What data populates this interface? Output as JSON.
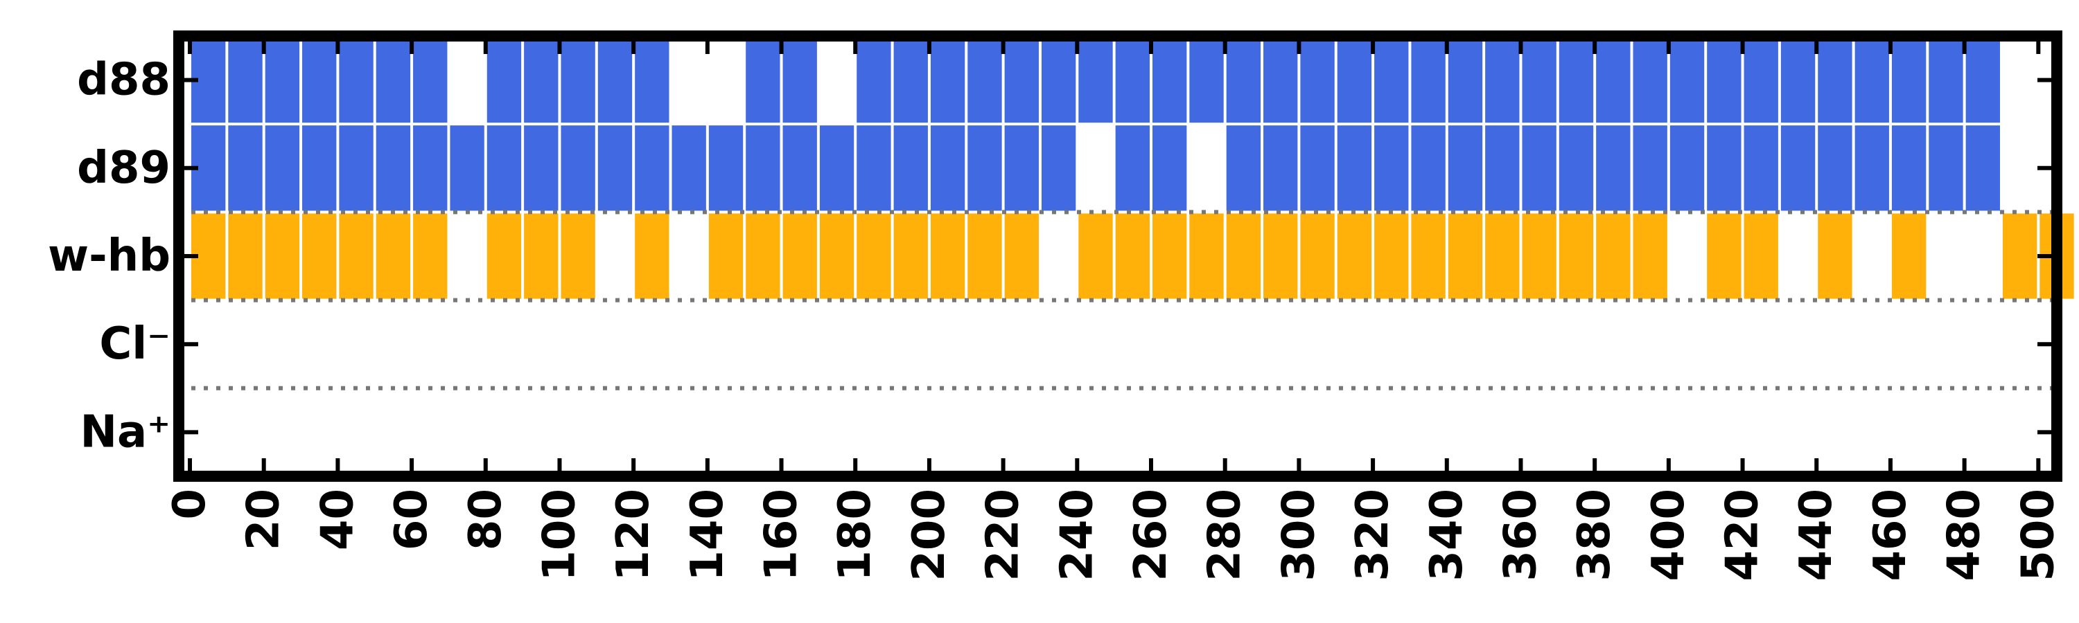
{
  "chart_data": {
    "type": "heatmap",
    "title": "",
    "xlabel": "",
    "ylabel": "",
    "xlim": [
      -3,
      505
    ],
    "x_ticks": [
      0,
      20,
      40,
      60,
      80,
      100,
      120,
      140,
      160,
      180,
      200,
      220,
      240,
      260,
      280,
      300,
      320,
      340,
      360,
      380,
      400,
      420,
      440,
      460,
      480,
      500
    ],
    "x_tick_labels": [
      "0",
      "20",
      "40",
      "60",
      "80",
      "100",
      "120",
      "140",
      "160",
      "180",
      "200",
      "220",
      "240",
      "260",
      "280",
      "300",
      "320",
      "340",
      "360",
      "380",
      "400",
      "420",
      "440",
      "460",
      "480",
      "500"
    ],
    "bin_width": 10,
    "rows": [
      {
        "label": "d88",
        "color": "#4169E1",
        "present_bins": [
          0,
          10,
          20,
          30,
          40,
          50,
          60,
          80,
          90,
          100,
          110,
          120,
          150,
          160,
          180,
          190,
          200,
          210,
          220,
          230,
          240,
          250,
          260,
          270,
          280,
          290,
          300,
          310,
          320,
          330,
          340,
          350,
          360,
          370,
          380,
          390,
          400,
          410,
          420,
          430,
          440,
          450,
          460,
          470,
          480
        ]
      },
      {
        "label": "d89",
        "color": "#4169E1",
        "present_bins": [
          0,
          10,
          20,
          30,
          40,
          50,
          60,
          70,
          80,
          90,
          100,
          110,
          120,
          130,
          140,
          150,
          160,
          170,
          180,
          190,
          200,
          210,
          220,
          230,
          250,
          260,
          280,
          290,
          300,
          310,
          320,
          330,
          340,
          350,
          360,
          370,
          380,
          390,
          400,
          410,
          420,
          430,
          440,
          450,
          460,
          470,
          480
        ]
      },
      {
        "label": "w-hb",
        "color": "#FFB10A",
        "present_bins": [
          0,
          10,
          20,
          30,
          40,
          50,
          60,
          80,
          90,
          100,
          120,
          140,
          150,
          160,
          170,
          180,
          190,
          200,
          210,
          220,
          240,
          250,
          260,
          270,
          280,
          290,
          300,
          310,
          320,
          330,
          340,
          350,
          360,
          370,
          380,
          390,
          410,
          420,
          440,
          460,
          490,
          500
        ]
      },
      {
        "label": "Cl⁻",
        "color": "#4169E1",
        "present_bins": []
      },
      {
        "label": "Na⁺",
        "color": "#FFB10A",
        "present_bins": []
      }
    ],
    "separators_after_rows": [
      "d89",
      "w-hb",
      "Cl⁻"
    ],
    "grid": false,
    "legend": "none"
  }
}
